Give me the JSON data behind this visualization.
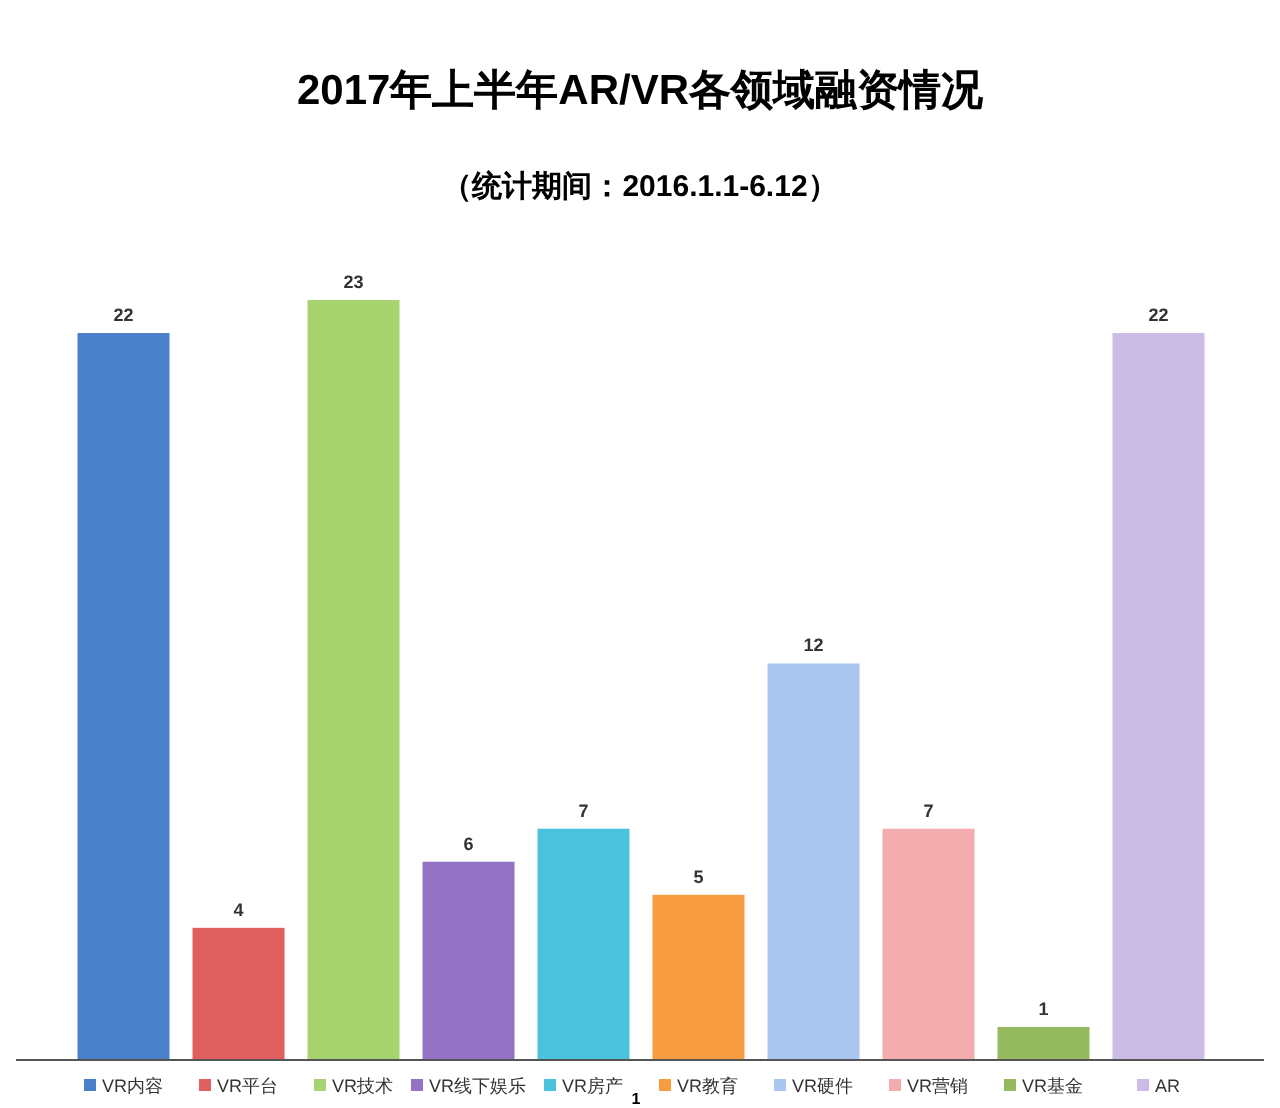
{
  "chart_data": {
    "type": "bar",
    "title": "2017年上半年AR/VR各领域融资情况",
    "subtitle": "（统计期间：2016.1.1-6.12）",
    "categories": [
      "VR内容",
      "VR平台",
      "VR技术",
      "VR线下娱乐",
      "VR房产",
      "VR教育",
      "VR硬件",
      "VR营销",
      "VR基金",
      "AR"
    ],
    "values": [
      22,
      4,
      23,
      6,
      7,
      5,
      12,
      7,
      1,
      22
    ],
    "colors": [
      "#4a7fc9",
      "#e06060",
      "#a8d46f",
      "#9273c4",
      "#4cc3dc",
      "#f89c42",
      "#a9c6f0",
      "#f4acae",
      "#94b95e",
      "#cbbce6"
    ],
    "data_labels": true,
    "annotations": [
      "1"
    ]
  }
}
